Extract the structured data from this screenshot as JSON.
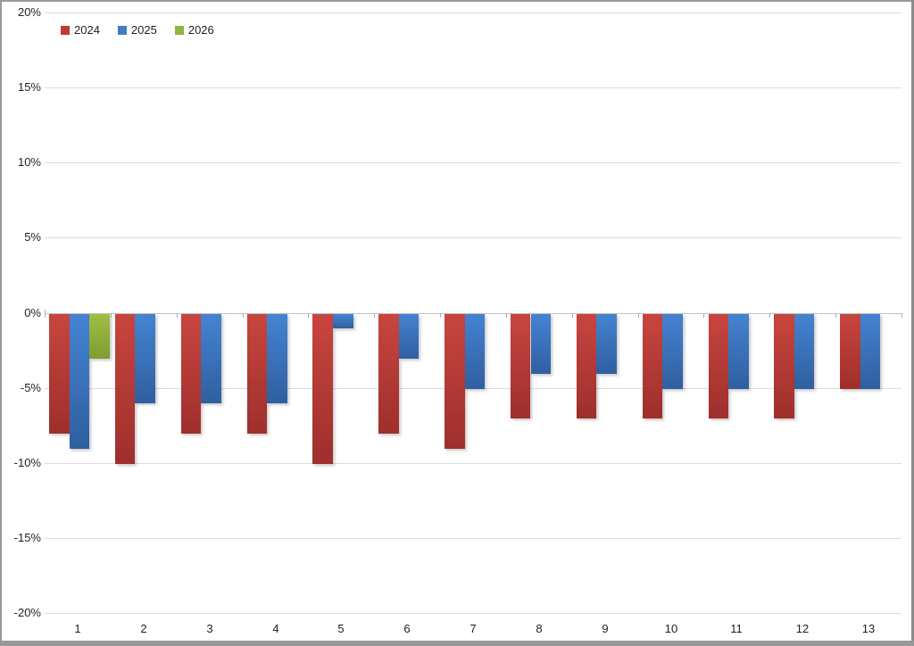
{
  "chart_data": {
    "type": "bar",
    "title": "",
    "xlabel": "",
    "ylabel": "",
    "categories": [
      "1",
      "2",
      "3",
      "4",
      "5",
      "6",
      "7",
      "8",
      "9",
      "10",
      "11",
      "12",
      "13"
    ],
    "series": [
      {
        "name": "2024",
        "legend_color": "#be3a37",
        "color_top": "#c8453f",
        "color_bottom": "#9e2f2c",
        "values": [
          -8,
          -10,
          -8,
          -8,
          -10,
          -8,
          -9,
          -7,
          -7,
          -7,
          -7,
          -7,
          -5
        ]
      },
      {
        "name": "2025",
        "legend_color": "#3c7dc4",
        "color_top": "#4583d2",
        "color_bottom": "#2f5f9f",
        "values": [
          -9,
          -6,
          -6,
          -6,
          -1,
          -3,
          -5,
          -4,
          -4,
          -5,
          -5,
          -5,
          -5
        ]
      },
      {
        "name": "2026",
        "legend_color": "#8fb53a",
        "color_top": "#a0be44",
        "color_bottom": "#7e9c33",
        "values": [
          -3,
          null,
          null,
          null,
          null,
          null,
          null,
          null,
          null,
          null,
          null,
          null,
          null
        ]
      }
    ],
    "ylim": [
      -20,
      20
    ],
    "ytick_step": 5,
    "ytick_labels": [
      "20%",
      "15%",
      "10%",
      "5%",
      "0%",
      "-5%",
      "-10%",
      "-15%",
      "-20%"
    ],
    "grid": "horizontal",
    "legend_position": "top-left",
    "value_format": "percent"
  }
}
